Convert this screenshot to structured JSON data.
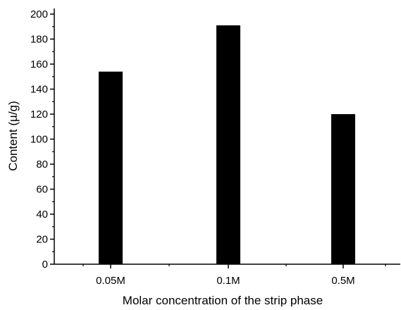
{
  "chart_data": {
    "type": "bar",
    "title": "",
    "categories": [
      "0.05M",
      "0.1M",
      "0.5M"
    ],
    "values": [
      154,
      191,
      120
    ],
    "xlabel": "Molar concentration of the strip phase",
    "ylabel": "Content (µ/g)",
    "ylim": [
      0,
      200
    ],
    "y_major_ticks": [
      0,
      20,
      40,
      60,
      80,
      100,
      120,
      140,
      160,
      180,
      200
    ],
    "y_tick_labels": [
      "0",
      "20",
      "40",
      "60",
      "80",
      "100",
      "120",
      "140",
      "160",
      "180",
      "200"
    ],
    "grid": false,
    "legend": "none",
    "bar_color": "#000000",
    "axis_color": "#000000"
  }
}
